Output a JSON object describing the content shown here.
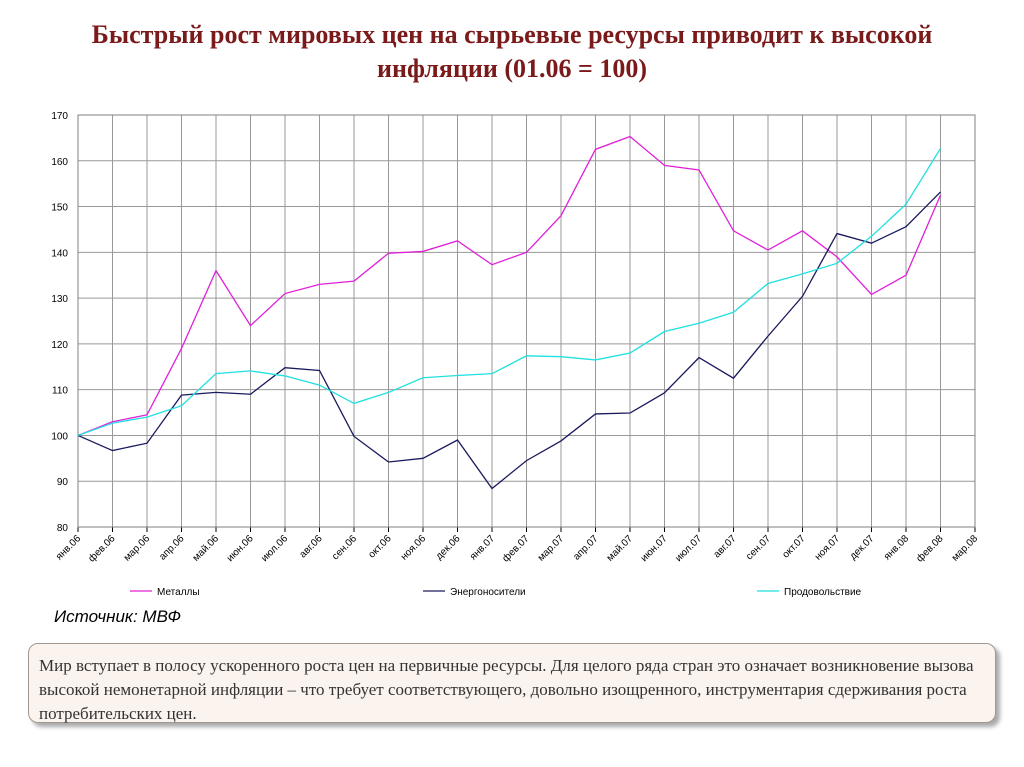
{
  "chart_data": {
    "type": "line",
    "title": "Быстрый рост мировых цен на сырьевые ресурсы приводит к высокой инфляции (01.06 = 100)",
    "categories": [
      "янв.06",
      "фев.06",
      "мар.06",
      "апр.06",
      "май.06",
      "июн.06",
      "июл.06",
      "авг.06",
      "сен.06",
      "окт.06",
      "ноя.06",
      "дек.06",
      "янв.07",
      "фев.07",
      "мар.07",
      "апр.07",
      "май.07",
      "июн.07",
      "июл.07",
      "авг.07",
      "сен.07",
      "окт.07",
      "ноя.07",
      "дек.07",
      "янв.08",
      "фев.08",
      "мар.08"
    ],
    "series": [
      {
        "name": "Металлы",
        "color": "#e020d8",
        "values": [
          100,
          103,
          104.5,
          119,
          136,
          124,
          131,
          133,
          133.7,
          139.8,
          140.2,
          142.5,
          137.3,
          140,
          148,
          162.5,
          165.3,
          159,
          158,
          144.7,
          140.5,
          144.7,
          139,
          130.8,
          135,
          152.5,
          null
        ]
      },
      {
        "name": "Энергоносители",
        "color": "#1a1a5e",
        "values": [
          100,
          96.7,
          98.3,
          108.8,
          109.4,
          109,
          114.8,
          114.2,
          99.8,
          94.2,
          95,
          99,
          88.4,
          94.5,
          98.8,
          104.7,
          104.9,
          109.3,
          117,
          112.5,
          121.7,
          130.4,
          144.1,
          142,
          145.6,
          153.2,
          null
        ]
      },
      {
        "name": "Продовольствие",
        "color": "#20e0e0",
        "values": [
          100,
          102.7,
          104,
          106.5,
          113.5,
          114.1,
          113,
          111,
          107,
          109.4,
          112.6,
          113.1,
          113.5,
          117.4,
          117.2,
          116.5,
          118,
          122.7,
          124.5,
          126.9,
          133.2,
          135.3,
          137.6,
          143.5,
          150.5,
          162.7,
          null
        ]
      }
    ],
    "ylim": [
      80,
      170
    ],
    "yticks": [
      80,
      90,
      100,
      110,
      120,
      130,
      140,
      150,
      160,
      170
    ],
    "grid": true,
    "source": "Источник: МВФ",
    "note": "Мир вступает в полосу ускоренного роста цен на первичные ресурсы. Для целого ряда стран это означает возникновение вызова высокой немонетарной инфляции – что требует соответствующего, довольно изощренного, инструментария сдерживания роста потребительских цен."
  }
}
